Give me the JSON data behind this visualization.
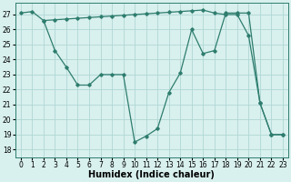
{
  "line1_x": [
    0,
    1,
    2,
    3,
    4,
    5,
    6,
    7,
    8,
    9,
    10,
    11,
    12,
    13,
    14,
    15,
    16,
    17,
    18,
    19,
    20,
    21,
    22,
    23
  ],
  "line1_y": [
    27.1,
    27.2,
    26.6,
    24.6,
    23.5,
    22.3,
    22.3,
    23.0,
    23.0,
    23.0,
    18.5,
    18.9,
    19.4,
    21.8,
    23.1,
    26.0,
    24.4,
    24.6,
    27.1,
    27.1,
    27.1,
    21.1,
    19.0,
    19.0
  ],
  "line2_x": [
    2,
    3,
    4,
    5,
    6,
    7,
    8,
    9,
    10,
    11,
    12,
    13,
    14,
    15,
    16,
    17,
    18,
    19,
    20,
    21,
    22,
    23
  ],
  "line2_y": [
    26.6,
    26.65,
    26.7,
    26.75,
    26.8,
    26.85,
    26.9,
    26.95,
    27.0,
    27.05,
    27.1,
    27.15,
    27.2,
    27.25,
    27.3,
    27.1,
    27.0,
    27.0,
    25.6,
    21.1,
    19.0,
    19.0
  ],
  "line_color": "#2e7d6e",
  "bg_color": "#d8f0ee",
  "grid_color": "#b0d8d4",
  "xlabel": "Humidex (Indice chaleur)",
  "xlabel_fontsize": 7,
  "yticks": [
    18,
    19,
    20,
    21,
    22,
    23,
    24,
    25,
    26,
    27
  ],
  "xticks": [
    0,
    1,
    2,
    3,
    4,
    5,
    6,
    7,
    8,
    9,
    10,
    11,
    12,
    13,
    14,
    15,
    16,
    17,
    18,
    19,
    20,
    21,
    22,
    23
  ],
  "xlim": [
    -0.5,
    23.5
  ],
  "ylim": [
    17.5,
    27.8
  ],
  "marker": "D",
  "markersize": 1.8,
  "linewidth": 0.9,
  "tick_labelsize": 5.5
}
